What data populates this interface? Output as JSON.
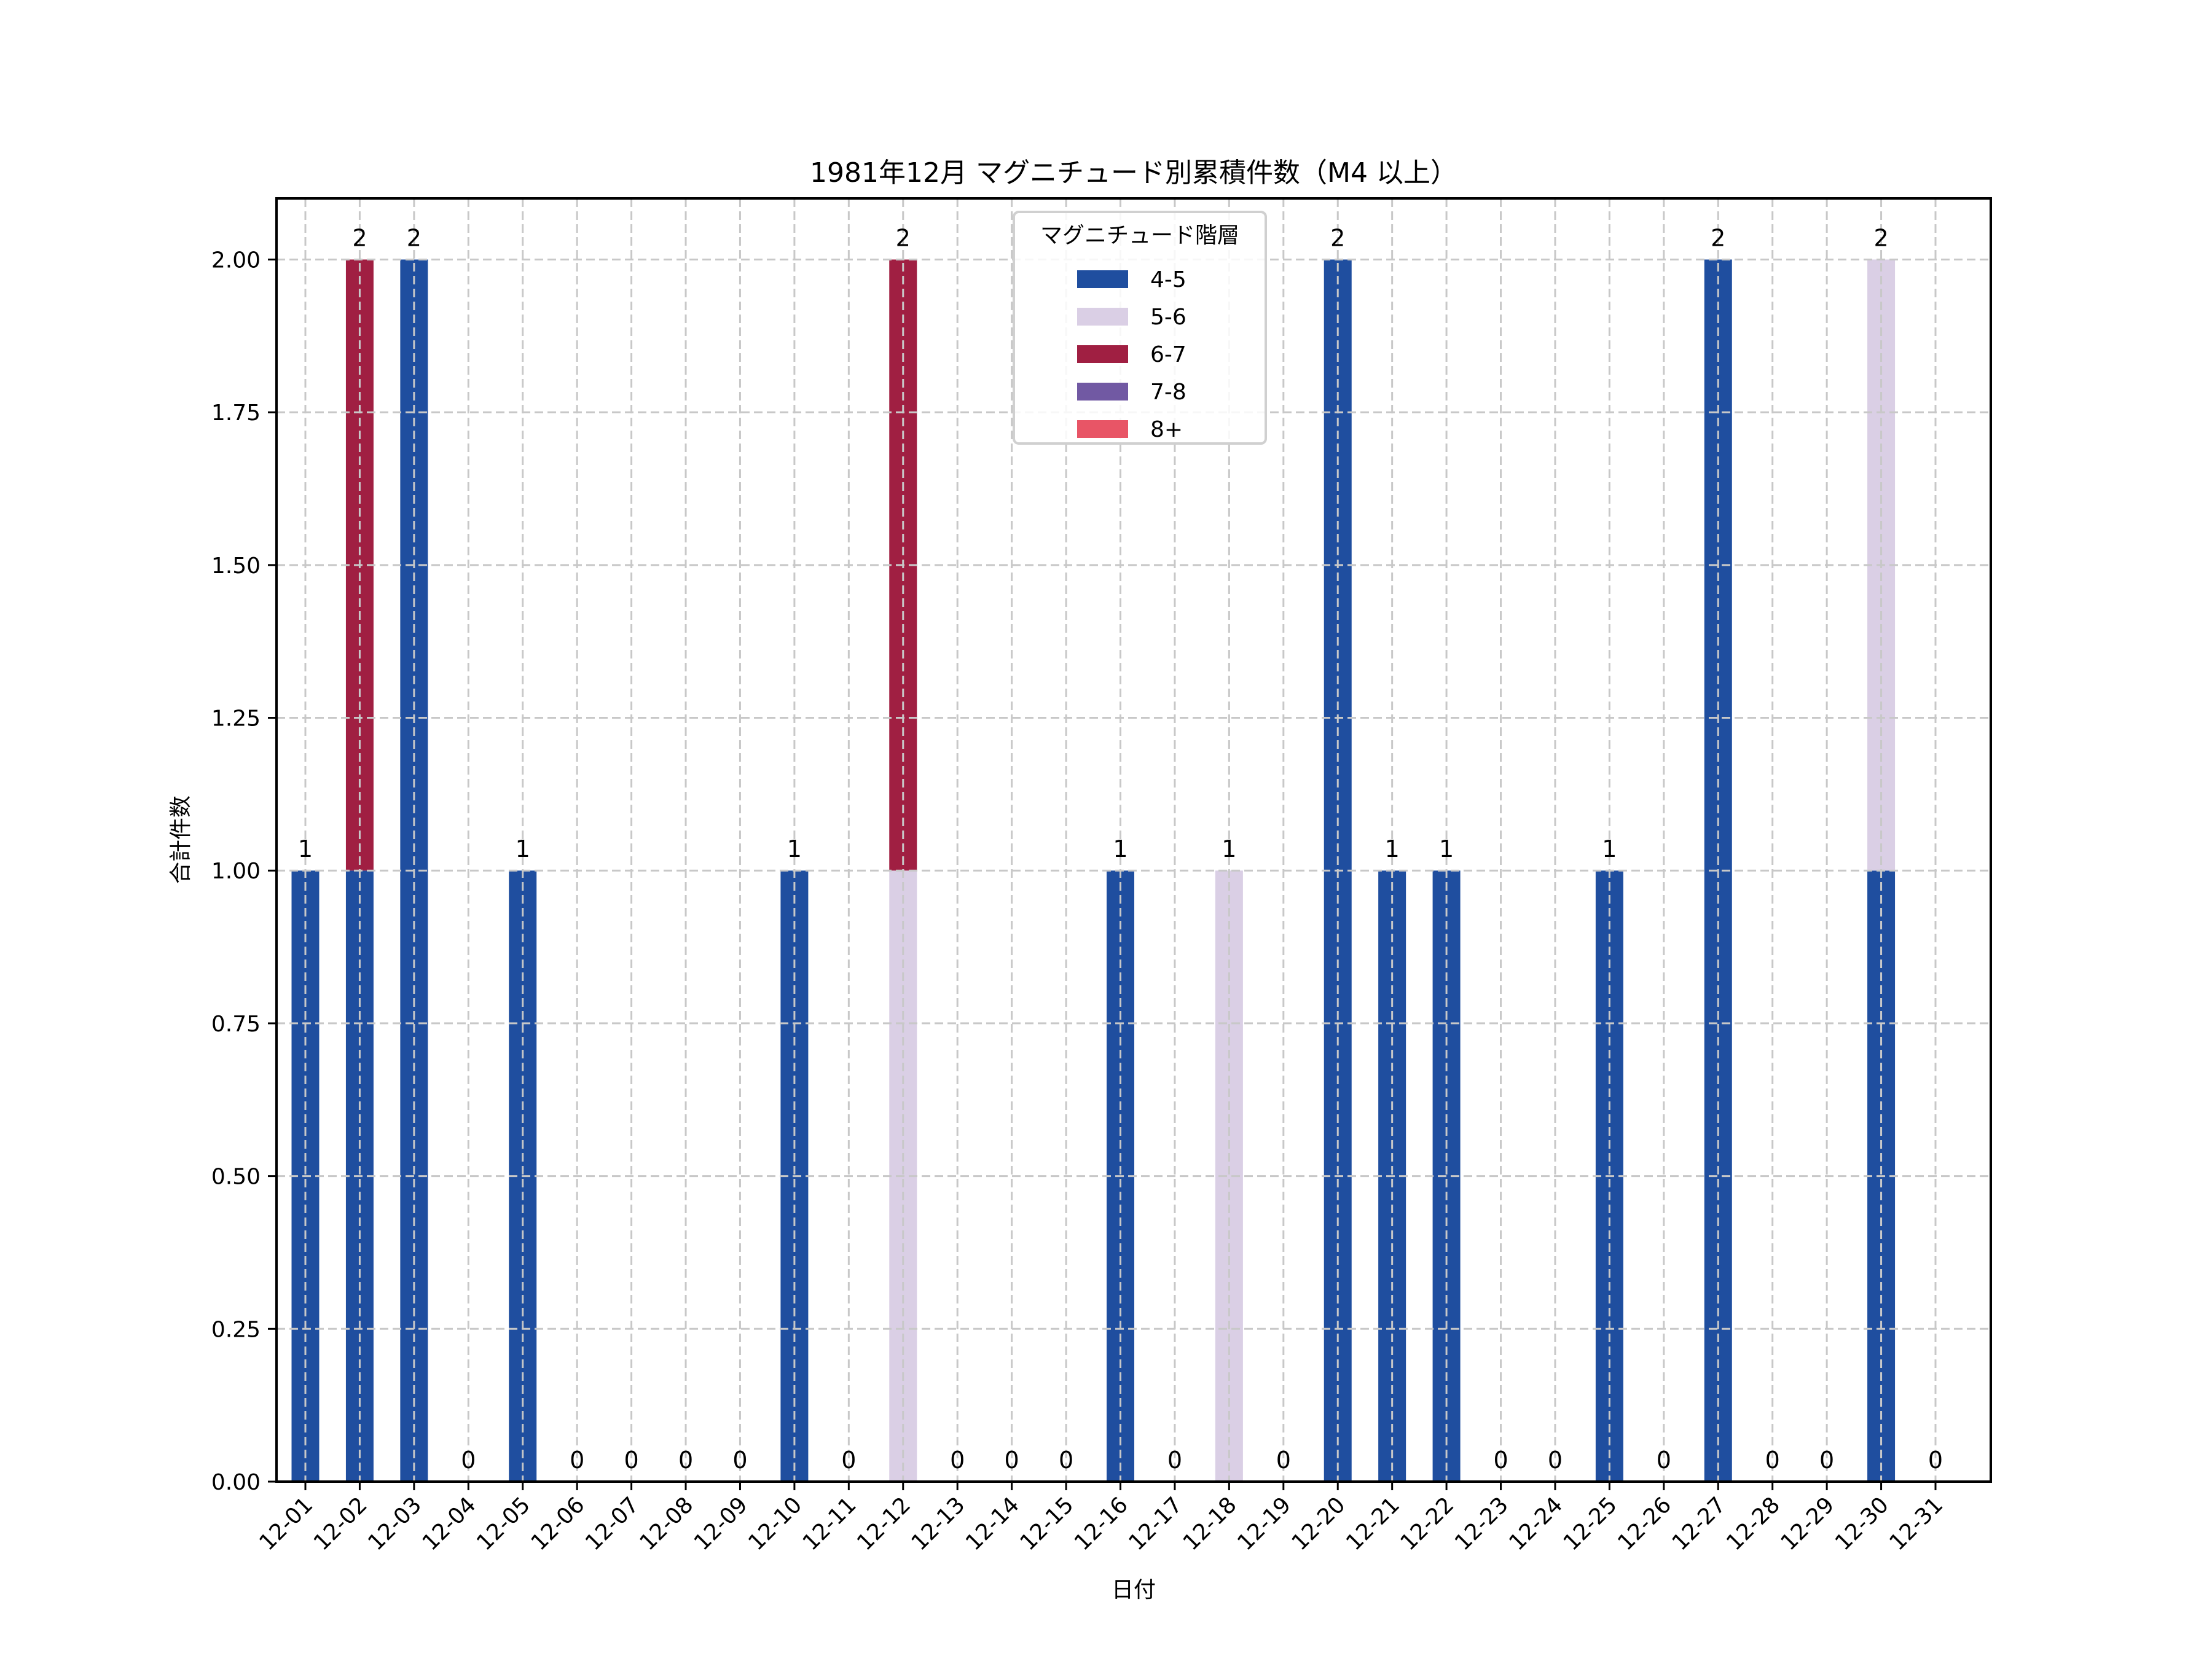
{
  "chart_data": {
    "type": "bar",
    "stacked": true,
    "title": "1981年12月 マグニチュード別累積件数（M4 以上）",
    "xlabel": "日付",
    "ylabel": "合計件数",
    "ylim": [
      0,
      2.1
    ],
    "yticks": [
      "0.00",
      "0.25",
      "0.50",
      "0.75",
      "1.00",
      "1.25",
      "1.50",
      "1.75",
      "2.00"
    ],
    "ytick_values": [
      0,
      0.25,
      0.5,
      0.75,
      1.0,
      1.25,
      1.5,
      1.75,
      2.0
    ],
    "grid": true,
    "legend_title": "マグニチュード階層",
    "legend_position": "upper center",
    "categories": [
      "12-01",
      "12-02",
      "12-03",
      "12-04",
      "12-05",
      "12-06",
      "12-07",
      "12-08",
      "12-09",
      "12-10",
      "12-11",
      "12-12",
      "12-13",
      "12-14",
      "12-15",
      "12-16",
      "12-17",
      "12-18",
      "12-19",
      "12-20",
      "12-21",
      "12-22",
      "12-23",
      "12-24",
      "12-25",
      "12-26",
      "12-27",
      "12-28",
      "12-29",
      "12-30",
      "12-31"
    ],
    "series": [
      {
        "name": "4-5",
        "color": "#1f4e9f",
        "values": [
          1,
          1,
          2,
          0,
          1,
          0,
          0,
          0,
          0,
          1,
          0,
          0,
          0,
          0,
          0,
          1,
          0,
          0,
          0,
          2,
          1,
          1,
          0,
          0,
          1,
          0,
          2,
          0,
          0,
          1,
          0
        ]
      },
      {
        "name": "5-6",
        "color": "#dacfe5",
        "values": [
          0,
          0,
          0,
          0,
          0,
          0,
          0,
          0,
          0,
          0,
          0,
          1,
          0,
          0,
          0,
          0,
          0,
          1,
          0,
          0,
          0,
          0,
          0,
          0,
          0,
          0,
          0,
          0,
          0,
          1,
          0
        ]
      },
      {
        "name": "6-7",
        "color": "#a01f42",
        "values": [
          0,
          1,
          0,
          0,
          0,
          0,
          0,
          0,
          0,
          0,
          0,
          1,
          0,
          0,
          0,
          0,
          0,
          0,
          0,
          0,
          0,
          0,
          0,
          0,
          0,
          0,
          0,
          0,
          0,
          0,
          0
        ]
      },
      {
        "name": "7-8",
        "color": "#7159a3",
        "values": [
          0,
          0,
          0,
          0,
          0,
          0,
          0,
          0,
          0,
          0,
          0,
          0,
          0,
          0,
          0,
          0,
          0,
          0,
          0,
          0,
          0,
          0,
          0,
          0,
          0,
          0,
          0,
          0,
          0,
          0,
          0
        ]
      },
      {
        "name": "8+",
        "color": "#e85566",
        "values": [
          0,
          0,
          0,
          0,
          0,
          0,
          0,
          0,
          0,
          0,
          0,
          0,
          0,
          0,
          0,
          0,
          0,
          0,
          0,
          0,
          0,
          0,
          0,
          0,
          0,
          0,
          0,
          0,
          0,
          0,
          0
        ]
      }
    ],
    "totals": [
      1,
      2,
      2,
      0,
      1,
      0,
      0,
      0,
      0,
      1,
      0,
      2,
      0,
      0,
      0,
      1,
      0,
      1,
      0,
      2,
      1,
      1,
      0,
      0,
      1,
      0,
      2,
      0,
      0,
      2,
      0
    ]
  }
}
